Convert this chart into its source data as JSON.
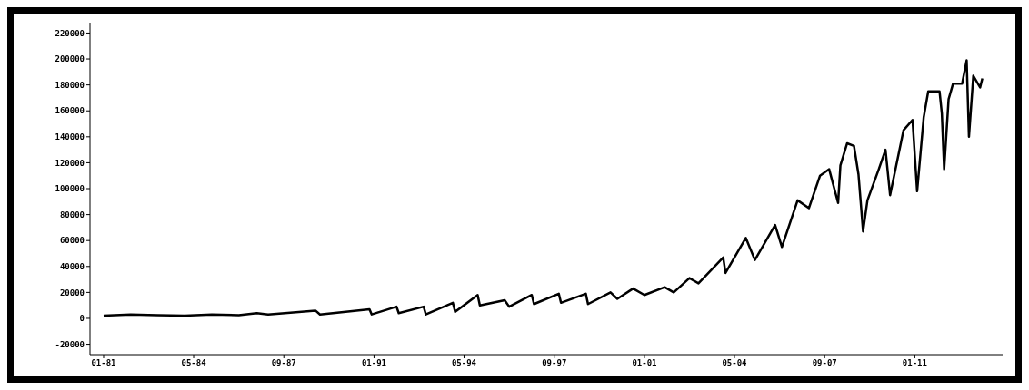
{
  "chart_data": {
    "type": "line",
    "x": [
      "1981-01",
      "1982-01",
      "1983-01",
      "1984-01",
      "1985-01",
      "1986-01",
      "1986-09",
      "1987-02",
      "1988-11",
      "1989-01",
      "1990-11",
      "1990-12",
      "1991-11",
      "1991-12",
      "1992-11",
      "1992-12",
      "1993-12",
      "1994-01",
      "1994-11",
      "1994-12",
      "1995-11",
      "1996-01",
      "1996-11",
      "1996-12",
      "1997-11",
      "1997-12",
      "1998-11",
      "1998-12",
      "1999-10",
      "2000-01",
      "2000-08",
      "2001-01",
      "2001-10",
      "2002-02",
      "2002-09",
      "2003-01",
      "2003-12",
      "2004-01",
      "2004-10",
      "2005-02",
      "2005-11",
      "2006-02",
      "2006-09",
      "2007-02",
      "2007-07",
      "2007-11",
      "2008-03",
      "2008-04",
      "2008-07",
      "2008-10",
      "2008-12",
      "2009-02",
      "2009-04",
      "2009-09",
      "2009-12",
      "2010-02",
      "2010-08",
      "2010-12",
      "2011-02",
      "2011-05",
      "2011-07",
      "2011-12",
      "2012-01",
      "2012-02",
      "2012-04",
      "2012-06",
      "2012-10",
      "2012-12",
      "2013-01",
      "2013-03",
      "2013-06",
      "2013-07"
    ],
    "series": [
      {
        "color": "#000000",
        "values": [
          2000,
          3000,
          2500,
          2000,
          3000,
          2500,
          4000,
          3000,
          6000,
          3000,
          7000,
          3000,
          9000,
          4000,
          9000,
          3000,
          12000,
          5000,
          18000,
          10000,
          14000,
          9000,
          18000,
          11000,
          19000,
          12000,
          19000,
          11000,
          20000,
          15000,
          23000,
          18000,
          24000,
          20000,
          31000,
          27000,
          47000,
          35000,
          62000,
          45000,
          72000,
          55000,
          91000,
          85000,
          110000,
          115000,
          89000,
          118000,
          135000,
          133000,
          111000,
          67000,
          91000,
          115000,
          130000,
          95000,
          145000,
          153000,
          98000,
          155000,
          175000,
          175000,
          158000,
          115000,
          169000,
          181000,
          181000,
          199000,
          140000,
          187000,
          178000,
          185000
        ]
      }
    ],
    "xlim": [
      "1980-07",
      "2014-04"
    ],
    "xticks": [
      {
        "value": "1981-01",
        "label": "01-81"
      },
      {
        "value": "1984-05",
        "label": "05-84"
      },
      {
        "value": "1987-09",
        "label": "09-87"
      },
      {
        "value": "1991-01",
        "label": "01-91"
      },
      {
        "value": "1994-05",
        "label": "05-94"
      },
      {
        "value": "1997-09",
        "label": "09-97"
      },
      {
        "value": "2001-01",
        "label": "01-01"
      },
      {
        "value": "2004-05",
        "label": "05-04"
      },
      {
        "value": "2007-09",
        "label": "09-07"
      },
      {
        "value": "2011-01",
        "label": "01-11"
      }
    ],
    "ylim": [
      -28000,
      228000
    ],
    "yticks": [
      -20000,
      0,
      20000,
      40000,
      60000,
      80000,
      100000,
      120000,
      140000,
      160000,
      180000,
      200000,
      220000
    ],
    "grid": false,
    "legend": false,
    "marker": "none",
    "line_style": "solid"
  }
}
